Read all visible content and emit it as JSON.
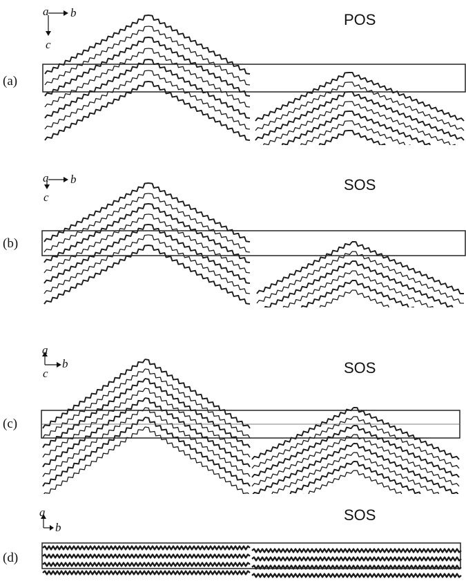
{
  "panels": [
    {
      "id": "a",
      "label": "(a)",
      "title": "POS",
      "axes": {
        "a": "a",
        "b": "b",
        "c": "c"
      }
    },
    {
      "id": "b",
      "label": "(b)",
      "title": "SOS",
      "axes": {
        "a": "a",
        "b": "b",
        "c": "c"
      }
    },
    {
      "id": "c",
      "label": "(c)",
      "title": "SOS",
      "axes": {
        "a": "a",
        "b": "b",
        "c": "c"
      }
    },
    {
      "id": "d",
      "label": "(d)",
      "title": "SOS",
      "axes": {
        "a": "a",
        "b": "b"
      }
    }
  ],
  "colors": {
    "chain": "#1a1a1a",
    "cell": "#222222"
  }
}
